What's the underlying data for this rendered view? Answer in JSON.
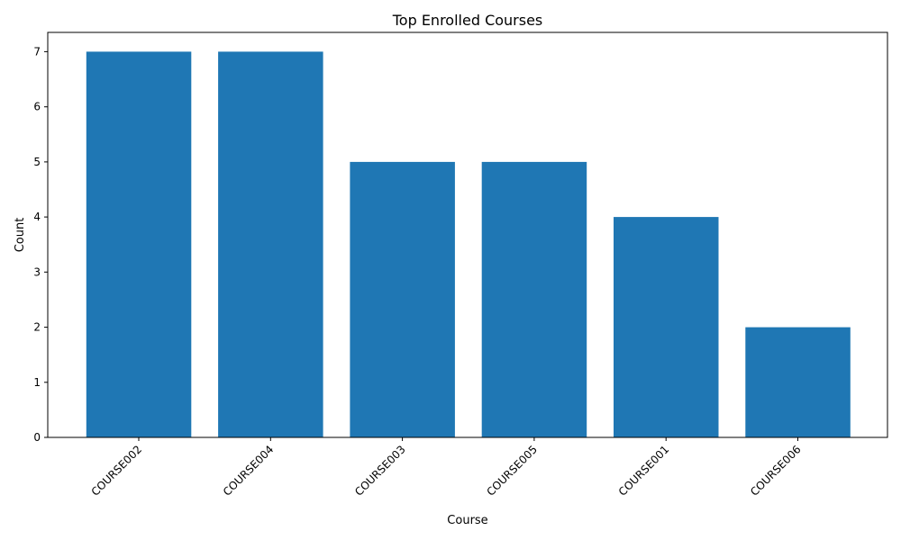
{
  "chart_data": {
    "type": "bar",
    "title": "Top Enrolled Courses",
    "xlabel": "Course",
    "ylabel": "Count",
    "categories": [
      "COURSE002",
      "COURSE004",
      "COURSE003",
      "COURSE005",
      "COURSE001",
      "COURSE006"
    ],
    "values": [
      7,
      7,
      5,
      5,
      4,
      2
    ],
    "ylim": [
      0,
      7.35
    ],
    "yticks": [
      0,
      1,
      2,
      3,
      4,
      5,
      6,
      7
    ],
    "xtick_rotation": 45,
    "bar_color": "#1f77b4",
    "grid": false,
    "legend": "none"
  }
}
